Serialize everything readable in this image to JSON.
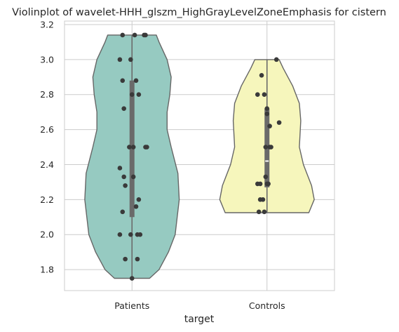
{
  "chart_data": {
    "type": "violin",
    "title": "Violinplot of wavelet-HHH_glszm_HighGrayLevelZoneEmphasis for cistern",
    "xlabel": "target",
    "ylabel": "",
    "categories": [
      "Patients",
      "Controls"
    ],
    "ylim": [
      1.68,
      3.22
    ],
    "yticks": [
      1.8,
      2.0,
      2.2,
      2.4,
      2.6,
      2.8,
      3.0,
      3.2
    ],
    "ytick_labels": [
      "1.8",
      "2.0",
      "2.2",
      "2.4",
      "2.6",
      "2.8",
      "3.0",
      "3.2"
    ],
    "grid": true,
    "colors": {
      "Patients": "#96cac1",
      "Controls": "#f6f6bc",
      "edge": "#666666",
      "points": "#3a3a3a",
      "grid": "#cccccc"
    },
    "violins": [
      {
        "name": "Patients",
        "min": 1.75,
        "max": 3.14,
        "q1": 2.1,
        "median": 2.5,
        "q3": 2.88,
        "profile": [
          {
            "y": 1.75,
            "half_width": 0.13
          },
          {
            "y": 1.8,
            "half_width": 0.2
          },
          {
            "y": 1.9,
            "half_width": 0.27
          },
          {
            "y": 2.0,
            "half_width": 0.32
          },
          {
            "y": 2.2,
            "half_width": 0.35
          },
          {
            "y": 2.35,
            "half_width": 0.34
          },
          {
            "y": 2.5,
            "half_width": 0.29
          },
          {
            "y": 2.6,
            "half_width": 0.26
          },
          {
            "y": 2.7,
            "half_width": 0.26
          },
          {
            "y": 2.8,
            "half_width": 0.28
          },
          {
            "y": 2.9,
            "half_width": 0.29
          },
          {
            "y": 3.0,
            "half_width": 0.26
          },
          {
            "y": 3.1,
            "half_width": 0.2
          },
          {
            "y": 3.14,
            "half_width": 0.18
          }
        ],
        "points": [
          {
            "y": 3.14,
            "dx": -0.07
          },
          {
            "y": 3.14,
            "dx": 0.02
          },
          {
            "y": 3.14,
            "dx": 0.09
          },
          {
            "y": 3.14,
            "dx": 0.1
          },
          {
            "y": 3.0,
            "dx": -0.09
          },
          {
            "y": 3.0,
            "dx": -0.01
          },
          {
            "y": 2.88,
            "dx": -0.07
          },
          {
            "y": 2.88,
            "dx": 0.03
          },
          {
            "y": 2.8,
            "dx": 0.0
          },
          {
            "y": 2.8,
            "dx": 0.05
          },
          {
            "y": 2.72,
            "dx": -0.06
          },
          {
            "y": 2.5,
            "dx": -0.02
          },
          {
            "y": 2.5,
            "dx": 0.01
          },
          {
            "y": 2.5,
            "dx": 0.1
          },
          {
            "y": 2.5,
            "dx": 0.11
          },
          {
            "y": 2.38,
            "dx": -0.09
          },
          {
            "y": 2.33,
            "dx": -0.06
          },
          {
            "y": 2.33,
            "dx": 0.01
          },
          {
            "y": 2.28,
            "dx": -0.05
          },
          {
            "y": 2.2,
            "dx": 0.05
          },
          {
            "y": 2.16,
            "dx": 0.03
          },
          {
            "y": 2.13,
            "dx": -0.07
          },
          {
            "y": 2.0,
            "dx": -0.09
          },
          {
            "y": 2.0,
            "dx": -0.01
          },
          {
            "y": 2.0,
            "dx": 0.04
          },
          {
            "y": 2.0,
            "dx": 0.06
          },
          {
            "y": 1.86,
            "dx": -0.05
          },
          {
            "y": 1.86,
            "dx": 0.04
          },
          {
            "y": 1.75,
            "dx": 0.0
          }
        ]
      },
      {
        "name": "Controls",
        "min": 2.125,
        "max": 3.0,
        "q1": 2.27,
        "median": 2.42,
        "q3": 2.72,
        "profile": [
          {
            "y": 2.125,
            "half_width": 0.31
          },
          {
            "y": 2.2,
            "half_width": 0.35
          },
          {
            "y": 2.28,
            "half_width": 0.33
          },
          {
            "y": 2.4,
            "half_width": 0.27
          },
          {
            "y": 2.5,
            "half_width": 0.24
          },
          {
            "y": 2.65,
            "half_width": 0.25
          },
          {
            "y": 2.75,
            "half_width": 0.24
          },
          {
            "y": 2.85,
            "half_width": 0.19
          },
          {
            "y": 2.95,
            "half_width": 0.12
          },
          {
            "y": 3.0,
            "half_width": 0.09
          }
        ],
        "points": [
          {
            "y": 3.0,
            "dx": 0.07
          },
          {
            "y": 2.91,
            "dx": -0.04
          },
          {
            "y": 2.8,
            "dx": -0.07
          },
          {
            "y": 2.8,
            "dx": -0.02
          },
          {
            "y": 2.72,
            "dx": 0.0
          },
          {
            "y": 2.69,
            "dx": 0.0
          },
          {
            "y": 2.64,
            "dx": 0.09
          },
          {
            "y": 2.62,
            "dx": 0.02
          },
          {
            "y": 2.5,
            "dx": -0.01
          },
          {
            "y": 2.5,
            "dx": 0.02
          },
          {
            "y": 2.5,
            "dx": 0.03
          },
          {
            "y": 2.33,
            "dx": -0.01
          },
          {
            "y": 2.29,
            "dx": -0.07
          },
          {
            "y": 2.29,
            "dx": -0.05
          },
          {
            "y": 2.29,
            "dx": 0.0
          },
          {
            "y": 2.29,
            "dx": 0.01
          },
          {
            "y": 2.2,
            "dx": -0.05
          },
          {
            "y": 2.2,
            "dx": -0.03
          },
          {
            "y": 2.13,
            "dx": -0.06
          },
          {
            "y": 2.13,
            "dx": -0.02
          }
        ]
      }
    ]
  }
}
